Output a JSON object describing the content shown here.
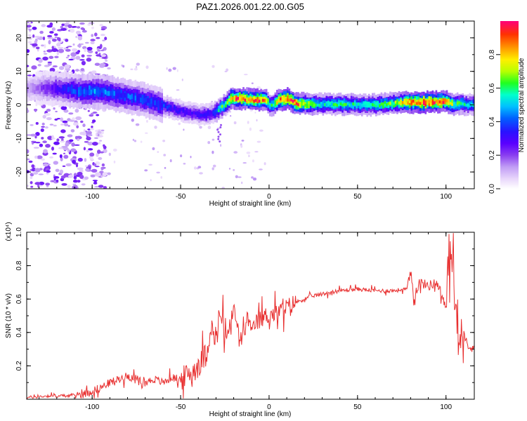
{
  "figure_title": "PAZ1.2026.001.22.00.G05",
  "colors": {
    "snr_line": "#e83030",
    "colormap": [
      "#ffffff",
      "#e8d6fb",
      "#c19df5",
      "#8a3ef0",
      "#5a00ff",
      "#2a12ff",
      "#0060ff",
      "#00c0ff",
      "#00ffcc",
      "#20ff20",
      "#b8ff00",
      "#ffee00",
      "#ff9900",
      "#ff3300",
      "#ff007a"
    ]
  },
  "chart_data": [
    {
      "type": "heatmap",
      "title": "",
      "xlabel": "Height of straight line (km)",
      "ylabel": "Frequency (Hz)",
      "xlim": [
        -137,
        116
      ],
      "ylim": [
        -25,
        25
      ],
      "x_ticks": [
        "-100",
        "-50",
        "0",
        "50",
        "100"
      ],
      "x_tick_values": [
        -100,
        -50,
        0,
        50,
        100
      ],
      "y_ticks": [
        "-20",
        "-10",
        "0",
        "10",
        "20"
      ],
      "y_tick_values": [
        -20,
        -10,
        0,
        10,
        20
      ],
      "colorbar": {
        "label": "Normalized spectral amplitude",
        "range": [
          0,
          1
        ],
        "ticks": [
          "0.0",
          "0.2",
          "0.4",
          "0.6",
          "0.8"
        ],
        "tick_values": [
          0,
          0.2,
          0.4,
          0.6,
          0.8
        ]
      },
      "ridge": {
        "x": [
          -135,
          -125,
          -115,
          -105,
          -95,
          -85,
          -75,
          -65,
          -55,
          -45,
          -38,
          -32,
          -28,
          -25,
          -22,
          -18,
          -10,
          -5,
          -2,
          0,
          2,
          5,
          10,
          15,
          20,
          30,
          40,
          50,
          60,
          70,
          80,
          90,
          100,
          105,
          108,
          112,
          116
        ],
        "freq": [
          5,
          5,
          4.5,
          4,
          4,
          3,
          2,
          0.5,
          -1,
          -2.5,
          -3,
          -2.5,
          -1,
          0,
          2,
          2,
          1.5,
          1.5,
          1.5,
          0,
          0,
          1.5,
          1.8,
          0.5,
          0.3,
          0.2,
          0.2,
          0,
          0,
          0.5,
          0.8,
          0.8,
          1,
          0,
          0.5,
          0,
          0
        ],
        "peak_amplitude": [
          0.15,
          0.25,
          0.35,
          0.45,
          0.45,
          0.4,
          0.4,
          0.4,
          0.35,
          0.3,
          0.35,
          0.35,
          0.6,
          0.6,
          0.8,
          0.9,
          0.85,
          0.9,
          0.8,
          0.55,
          0.6,
          0.85,
          0.9,
          0.9,
          0.7,
          0.55,
          0.6,
          0.55,
          0.6,
          0.65,
          0.9,
          0.95,
          0.85,
          0.6,
          0.6,
          0.5,
          0.5
        ]
      }
    },
    {
      "type": "line",
      "title": "",
      "xlabel": "Height of straight line (km)",
      "ylabel": "SNR (10 * v/v)",
      "y_multiplier": "(x10⁴)",
      "xlim": [
        -137,
        116
      ],
      "ylim": [
        0,
        1.0
      ],
      "x_ticks": [
        "-100",
        "-50",
        "0",
        "50",
        "100"
      ],
      "x_tick_values": [
        -100,
        -50,
        0,
        50,
        100
      ],
      "y_ticks": [
        "0.2",
        "0.4",
        "0.6",
        "0.8",
        "1.0"
      ],
      "y_tick_values": [
        0.2,
        0.4,
        0.6,
        0.8,
        1.0
      ],
      "series": [
        {
          "x": [
            -137,
            -125,
            -115,
            -105,
            -100,
            -95,
            -90,
            -85,
            -80,
            -75,
            -70,
            -65,
            -60,
            -55,
            -50,
            -45,
            -40,
            -35,
            -33,
            -30,
            -28,
            -25,
            -22,
            -20,
            -18,
            -15,
            -12,
            -10,
            -8,
            -5,
            -2,
            0,
            5,
            10,
            15,
            20,
            25,
            30,
            35,
            40,
            50,
            60,
            70,
            78,
            80,
            82,
            85,
            90,
            95,
            100,
            103,
            105,
            107,
            110,
            112,
            116
          ],
          "y": [
            0.01,
            0.02,
            0.02,
            0.03,
            0.05,
            0.07,
            0.1,
            0.12,
            0.14,
            0.12,
            0.1,
            0.12,
            0.1,
            0.13,
            0.12,
            0.15,
            0.2,
            0.28,
            0.45,
            0.32,
            0.52,
            0.4,
            0.42,
            0.55,
            0.42,
            0.35,
            0.5,
            0.38,
            0.45,
            0.48,
            0.5,
            0.5,
            0.52,
            0.55,
            0.58,
            0.6,
            0.62,
            0.63,
            0.64,
            0.65,
            0.66,
            0.65,
            0.65,
            0.66,
            0.75,
            0.62,
            0.7,
            0.68,
            0.7,
            0.55,
            0.95,
            0.6,
            0.45,
            0.32,
            0.31,
            0.3
          ]
        }
      ]
    }
  ]
}
